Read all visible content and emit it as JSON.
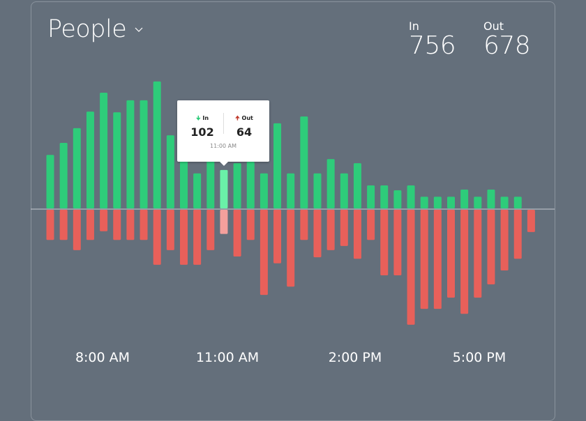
{
  "header": {
    "title": "People",
    "dropdown_icon": "chevron-down-icon"
  },
  "totals": {
    "in_label": "In",
    "in_value": "756",
    "out_label": "Out",
    "out_value": "678"
  },
  "tooltip": {
    "in_label": "In",
    "in_value": "102",
    "out_label": "Out",
    "out_value": "64",
    "time": "11:00 AM",
    "in_icon": "arrow-down-icon",
    "out_icon": "arrow-up-icon"
  },
  "colors": {
    "background": "#646f7b",
    "in": "#2ecc7a",
    "out": "#e8605a",
    "in_highlight": "#6af0a8",
    "out_highlight": "#f4a09c"
  },
  "chart_data": {
    "type": "bar",
    "title": "",
    "xlabel": "",
    "ylabel": "",
    "x_tick_labels": [
      "8:00 AM",
      "11:00 AM",
      "2:00 PM",
      "5:00 PM"
    ],
    "highlighted_index": 13,
    "ylim": [
      -315,
      370
    ],
    "series": [
      {
        "name": "In",
        "direction": "up",
        "values": [
          142,
          174,
          213,
          257,
          307,
          255,
          287,
          287,
          337,
          194,
          130,
          93,
          126,
          102,
          120,
          124,
          93,
          226,
          93,
          244,
          93,
          131,
          93,
          120,
          61,
          61,
          48,
          61,
          31,
          31,
          31,
          50,
          31,
          50,
          31,
          31,
          0
        ]
      },
      {
        "name": "Out",
        "direction": "down",
        "values": [
          80,
          80,
          107,
          80,
          57,
          80,
          80,
          80,
          146,
          107,
          146,
          146,
          107,
          64,
          124,
          80,
          226,
          142,
          204,
          80,
          126,
          107,
          96,
          130,
          80,
          174,
          174,
          305,
          263,
          263,
          233,
          276,
          233,
          198,
          161,
          130,
          59
        ]
      }
    ]
  }
}
